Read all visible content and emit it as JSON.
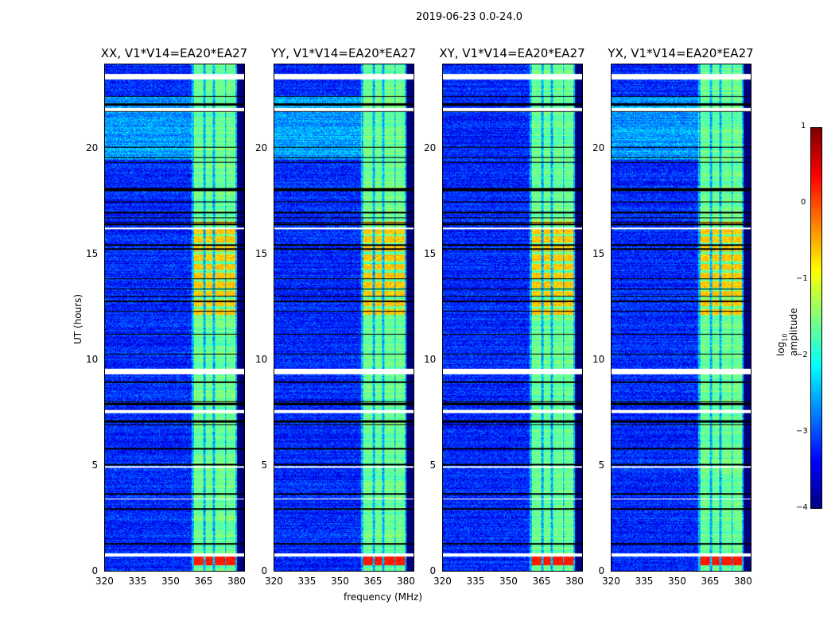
{
  "chart_data": {
    "type": "heatmap",
    "title": "2019-06-23 0.0-24.0",
    "xlabel": "frequency (MHz)",
    "ylabel": "UT (hours)",
    "xlim": [
      320,
      384
    ],
    "ylim": [
      0,
      24
    ],
    "xticks": [
      "320",
      "335",
      "350",
      "365",
      "380"
    ],
    "yticks": [
      "0",
      "5",
      "10",
      "15",
      "20"
    ],
    "xtick_values": [
      320,
      335,
      350,
      365,
      380
    ],
    "ytick_values": [
      0,
      5,
      10,
      15,
      20
    ],
    "panels": [
      {
        "title": "XX, V1*V14=EA20*EA27"
      },
      {
        "title": "YY, V1*V14=EA20*EA27"
      },
      {
        "title": "XY, V1*V14=EA20*EA27"
      },
      {
        "title": "YX, V1*V14=EA20*EA27"
      }
    ],
    "background_level": -3.2,
    "bright_channels_MHz": [
      [
        360.5,
        365
      ],
      [
        366,
        369.5
      ],
      [
        370.5,
        375
      ],
      [
        375.5,
        380
      ]
    ],
    "bright_level": -1.6,
    "high_intervals_hours": [
      [
        12,
        16.6
      ],
      [
        0.3,
        0.7
      ]
    ],
    "high_level": -0.7,
    "flagged_hours": [
      [
        23.3,
        23.55
      ],
      [
        21.8,
        21.95
      ],
      [
        9.35,
        9.6
      ],
      [
        7.5,
        7.65
      ],
      [
        0.7,
        0.85
      ],
      [
        16.2,
        16.3
      ],
      [
        4.9,
        4.97
      ],
      [
        3.4,
        3.45
      ]
    ],
    "colorbar": {
      "label": "log10 amplitude",
      "label_main": "log",
      "label_sub": "10",
      "label_rest": " amplitude",
      "ticks": [
        "1",
        "0",
        "−1",
        "−2",
        "−3",
        "−4"
      ],
      "tick_values": [
        1,
        0,
        -1,
        -2,
        -3,
        -4
      ],
      "range": [
        -4,
        1
      ],
      "colormap": "jet"
    }
  }
}
